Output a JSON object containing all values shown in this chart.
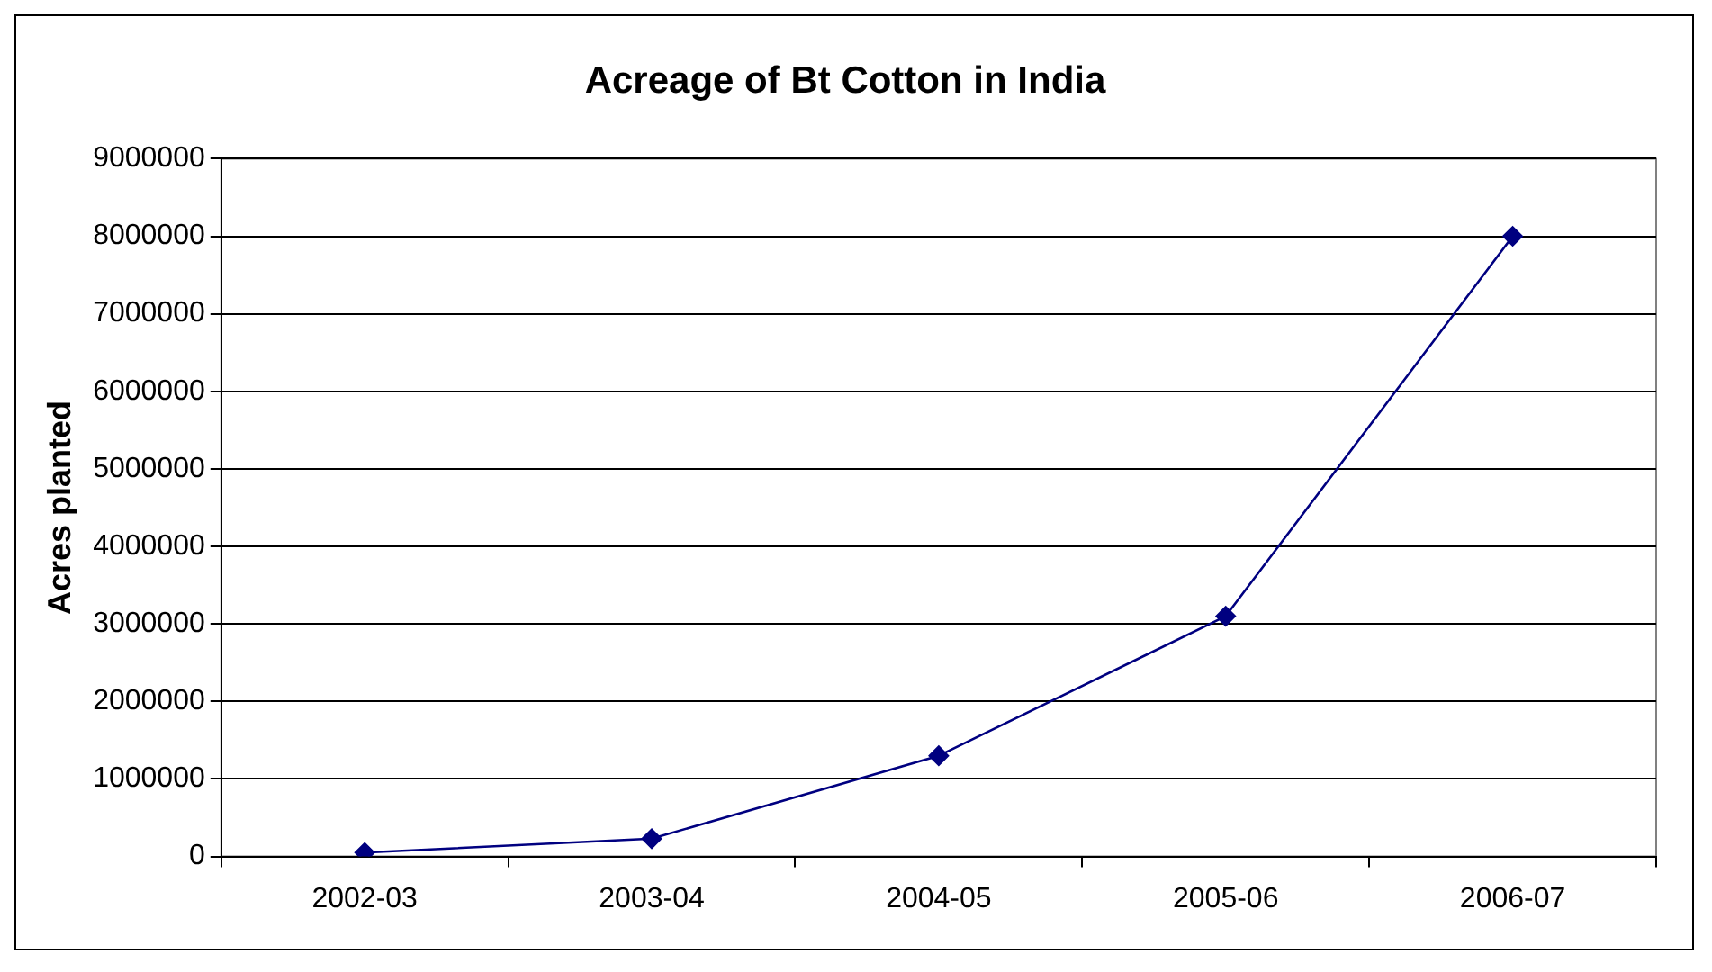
{
  "chart_data": {
    "type": "line",
    "title": "Acreage of Bt Cotton in India",
    "ylabel": "Acres planted",
    "categories": [
      "2002-03",
      "2003-04",
      "2004-05",
      "2005-06",
      "2006-07"
    ],
    "series": [
      {
        "color": "#000080",
        "values": [
          50000,
          230000,
          1300000,
          3100000,
          8000000
        ]
      }
    ],
    "ylim": [
      0,
      9000000
    ],
    "yticks": [
      0,
      1000000,
      2000000,
      3000000,
      4000000,
      5000000,
      6000000,
      7000000,
      8000000,
      9000000
    ],
    "grid": "y",
    "legend": false,
    "marker": "diamond",
    "line_style": "solid"
  }
}
